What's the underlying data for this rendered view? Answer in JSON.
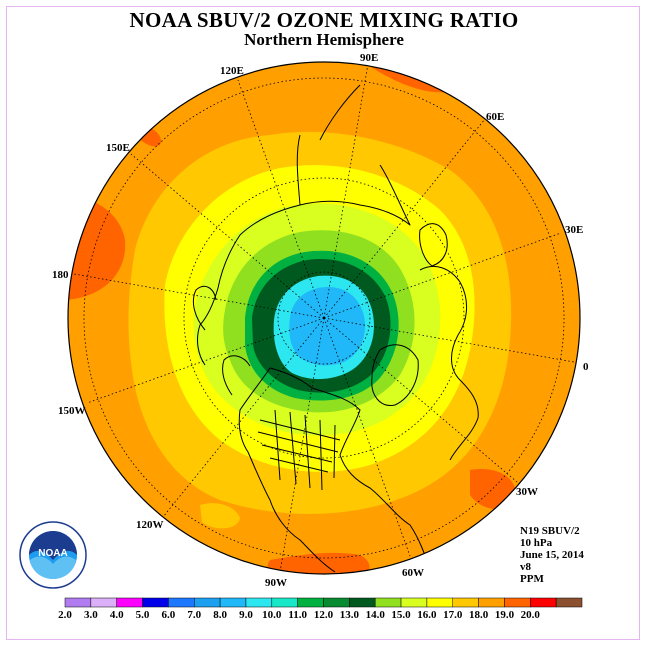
{
  "header": {
    "title": "NOAA SBUV/2 OZONE MIXING RATIO",
    "subtitle": "Northern Hemisphere"
  },
  "info": {
    "line1": "N19 SBUV/2",
    "line2": "10 hPa",
    "line3": "June 15, 2014",
    "line4": "v8",
    "line5": "PPM"
  },
  "logo": {
    "text": "NOAA",
    "ring_text": "NATIONAL OCEANIC AND ATMOSPHERIC ADMINISTRATION · U.S. DEPARTMENT OF COMMERCE"
  },
  "longitude_labels": [
    "90E",
    "60E",
    "30E",
    "0",
    "30W",
    "60W",
    "90W",
    "120W",
    "150W",
    "180",
    "150E",
    "120E"
  ],
  "legend": {
    "ticks": [
      "2.0",
      "3.0",
      "4.0",
      "5.0",
      "6.0",
      "7.0",
      "8.0",
      "9.0",
      "10.0",
      "11.0",
      "12.0",
      "13.0",
      "14.0",
      "15.0",
      "16.0",
      "17.0",
      "18.0",
      "19.0",
      "20.0"
    ],
    "colors": [
      "#b07cf0",
      "#dcb0f8",
      "#ff00ff",
      "#0000e8",
      "#1e78ff",
      "#1ea0f0",
      "#20b8f8",
      "#2ce6f0",
      "#18e8c8",
      "#00b040",
      "#088a30",
      "#005a20",
      "#90e020",
      "#d8ff20",
      "#ffff00",
      "#ffc800",
      "#ffa000",
      "#ff6400",
      "#ff0000",
      "#8c5030"
    ]
  },
  "map_colors": {
    "orange": "#ffa000",
    "dark_orange": "#ff6400",
    "amber": "#ffc800",
    "yellow": "#ffff00",
    "yellow_green": "#d8ff20",
    "light_green": "#90e020",
    "green": "#00b040",
    "dark_green": "#005a20",
    "turquoise": "#2ce6f0",
    "light_blue": "#20b8f8"
  }
}
